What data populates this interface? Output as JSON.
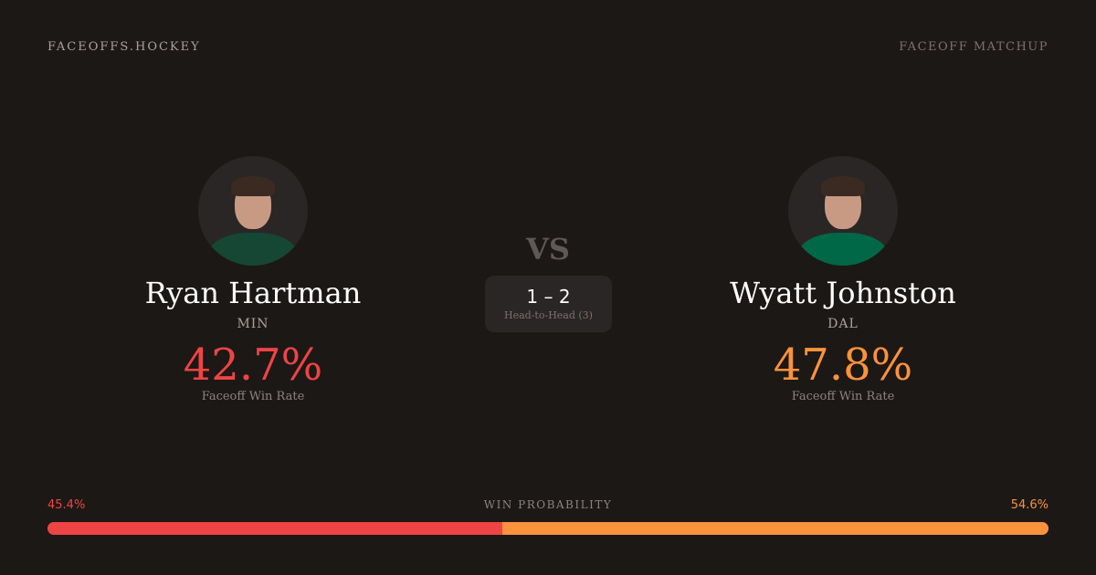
{
  "brand": "FACEOFFS.HOCKEY",
  "page_tag": "FACEOFF MATCHUP",
  "vs_label": "VS",
  "head_to_head": {
    "score": "1 – 2",
    "label": "Head-to-Head (3)"
  },
  "players": [
    {
      "name": "Ryan Hartman",
      "team": "MIN",
      "win_rate": "42.7%",
      "win_rate_label": "Faceoff Win Rate",
      "color": "#ef4444",
      "jersey_color": "#154734"
    },
    {
      "name": "Wyatt Johnston",
      "team": "DAL",
      "win_rate": "47.8%",
      "win_rate_label": "Faceoff Win Rate",
      "color": "#fb923c",
      "jersey_color": "#006847"
    }
  ],
  "win_probability": {
    "label": "WIN PROBABILITY",
    "left": "45.4%",
    "right": "54.6%",
    "left_value": 45.4,
    "right_value": 54.6,
    "left_color": "#ef4444",
    "right_color": "#fb923c"
  }
}
